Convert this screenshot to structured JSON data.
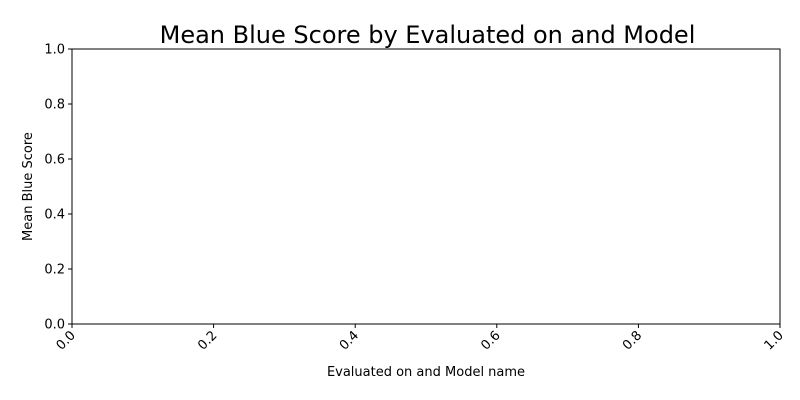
{
  "chart_data": {
    "type": "bar",
    "title": "Mean Blue Score by Evaluated on and Model",
    "xlabel": "Evaluated on and Model name",
    "ylabel": "Mean Blue Score",
    "categories": [],
    "values": [],
    "xlim": [
      0.0,
      1.0
    ],
    "ylim": [
      0.0,
      1.0
    ],
    "x_ticks": [
      "0.0",
      "0.2",
      "0.4",
      "0.6",
      "0.8",
      "1.0"
    ],
    "y_ticks": [
      "0.0",
      "0.2",
      "0.4",
      "0.6",
      "0.8",
      "1.0"
    ],
    "x_tick_rotation": 45,
    "grid": false,
    "legend": "none"
  }
}
